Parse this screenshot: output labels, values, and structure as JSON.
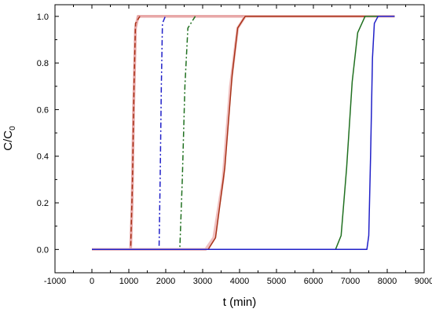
{
  "chart_data": {
    "type": "line",
    "xlabel": "t (min)",
    "ylabel_main": "C/C",
    "ylabel_sub": "0",
    "xlim": [
      -1000,
      9000
    ],
    "ylim": [
      -0.1,
      1.05
    ],
    "xticks": [
      -1000,
      0,
      1000,
      2000,
      3000,
      4000,
      5000,
      6000,
      7000,
      8000,
      9000
    ],
    "yticks": [
      0.0,
      0.2,
      0.4,
      0.6,
      0.8,
      1.0
    ],
    "xtick_labels": [
      "-1000",
      "0",
      "1000",
      "2000",
      "3000",
      "4000",
      "5000",
      "6000",
      "7000",
      "8000",
      "9000"
    ],
    "ytick_labels": [
      "0.0",
      "0.2",
      "0.4",
      "0.6",
      "0.8",
      "1.0"
    ],
    "grid": false,
    "series": [
      {
        "color": "#e8a8a8",
        "style": "solid",
        "x": [
          0,
          1050,
          1090,
          1130,
          1180,
          1250,
          8200
        ],
        "y": [
          0,
          0,
          0.2,
          0.6,
          0.95,
          1.0,
          1.0
        ]
      },
      {
        "color": "#a83218",
        "style": "dashed",
        "x": [
          0,
          1050,
          1100,
          1140,
          1180,
          1300
        ],
        "y": [
          0,
          0,
          0.3,
          0.7,
          0.97,
          1.0
        ]
      },
      {
        "color": "#2020c8",
        "style": "dashdot",
        "x": [
          0,
          1820,
          1850,
          1880,
          1910,
          1990
        ],
        "y": [
          0,
          0,
          0.3,
          0.7,
          0.97,
          1.0
        ]
      },
      {
        "color": "#207020",
        "style": "dashdot",
        "x": [
          0,
          2380,
          2450,
          2520,
          2600,
          2800
        ],
        "y": [
          0,
          0,
          0.3,
          0.7,
          0.95,
          1.0
        ]
      },
      {
        "color": "#f0c0c0",
        "style": "solid",
        "x": [
          0,
          3080,
          3300,
          3550,
          3750,
          3950,
          4150,
          8200
        ],
        "y": [
          0,
          0,
          0.05,
          0.3,
          0.7,
          0.95,
          1.0,
          1.0
        ]
      },
      {
        "color": "#a83218",
        "style": "solid",
        "x": [
          0,
          3150,
          3350,
          3600,
          3800,
          3950,
          4150,
          8200
        ],
        "y": [
          0,
          0,
          0.05,
          0.35,
          0.75,
          0.95,
          1.0,
          1.0
        ]
      },
      {
        "color": "#207020",
        "style": "solid",
        "x": [
          0,
          6600,
          6750,
          6900,
          7050,
          7200,
          7400,
          8200
        ],
        "y": [
          0,
          0,
          0.06,
          0.35,
          0.72,
          0.93,
          1.0,
          1.0
        ]
      },
      {
        "color": "#2020c8",
        "style": "solid",
        "x": [
          0,
          7450,
          7500,
          7550,
          7600,
          7650,
          7750,
          8200
        ],
        "y": [
          0,
          0,
          0.06,
          0.4,
          0.82,
          0.97,
          1.0,
          1.0
        ]
      }
    ]
  }
}
